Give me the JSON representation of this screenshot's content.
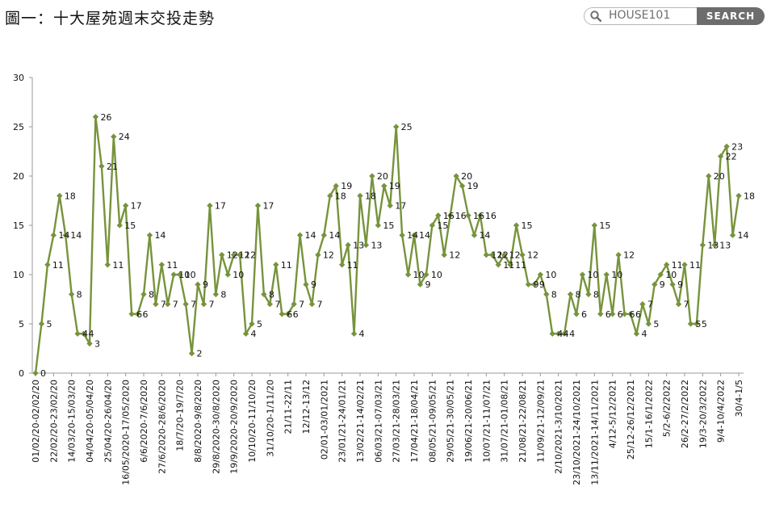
{
  "header": {
    "title": "圖一：十大屋苑週末交投走勢",
    "search_placeholder": "HOUSE101",
    "search_button": "SEARCH"
  },
  "colors": {
    "line": "#77933c",
    "axis": "#999999",
    "text": "#111111"
  },
  "chart_data": {
    "type": "line",
    "title": "",
    "xlabel": "",
    "ylabel": "",
    "ylim": [
      0,
      30
    ],
    "yticks": [
      0,
      5,
      10,
      15,
      20,
      25,
      30
    ],
    "grid": false,
    "legend": "none",
    "values": [
      0,
      5,
      11,
      14,
      18,
      14,
      8,
      4,
      4,
      3,
      26,
      21,
      11,
      24,
      15,
      17,
      6,
      6,
      8,
      14,
      7,
      11,
      7,
      10,
      10,
      7,
      2,
      9,
      7,
      17,
      8,
      12,
      10,
      12,
      12,
      4,
      5,
      17,
      8,
      7,
      11,
      6,
      6,
      7,
      14,
      9,
      7,
      12,
      14,
      18,
      19,
      11,
      13,
      4,
      18,
      13,
      20,
      15,
      19,
      17,
      25,
      14,
      10,
      14,
      9,
      10,
      15,
      16,
      12,
      16,
      20,
      19,
      16,
      14,
      16,
      12,
      12,
      11,
      12,
      11,
      15,
      12,
      9,
      9,
      10,
      8,
      4,
      4,
      4,
      8,
      6,
      10,
      8,
      15,
      6,
      10,
      6,
      12,
      6,
      6,
      4,
      7,
      5,
      9,
      10,
      11,
      9,
      7,
      11,
      5,
      5,
      13,
      20,
      13,
      22,
      23,
      14,
      18
    ],
    "x_tick_labels": [
      "01/02/20-02/02/20",
      "22/02/20-23/02/20",
      "14/03/20-15/03/20",
      "04/04/20-05/04/20",
      "25/04/20-26/04/20",
      "16/05/2020-17/05/2020",
      "6/6/2020-7/6/2020",
      "27/6/2020-28/6/2020",
      "18/7/20-19/7/20",
      "8/8/2020-9/8/2020",
      "29/8/2020-30/8/2020",
      "19/9/2020-20/9/2020",
      "10/10/20-11/10/20",
      "31/10/20-1/11/20",
      "21/11-22/11",
      "12/12-13/12",
      "02/01-03/01/2021",
      "23/01/21-24/01/21",
      "13/02/21-14/02/21",
      "06/03/21-07/03/21",
      "27/03/21-28/03/21",
      "17/04/21-18/04/21",
      "08/05/21-09/05/21",
      "29/05/21-30/05/21",
      "19/06/21-20/06/21",
      "10/07/21-11/07/21",
      "31/07/21-01/08/21",
      "21/08/21-22/08/21",
      "11/09/21-12/09/21",
      "2/10/2021-3/10/2021",
      "23/10/2021-24/10/2021",
      "13/11/2021-14/11/2021",
      "4/12-5/12/2021",
      "25/12-26/12/2021",
      "15/1-16/1/2022",
      "5/2-6/2/2022",
      "26/2-27/2/2022",
      "19/3-20/3/2022",
      "9/4-10/4/2022",
      "30/4-1/5"
    ],
    "x_tick_every": 3
  }
}
